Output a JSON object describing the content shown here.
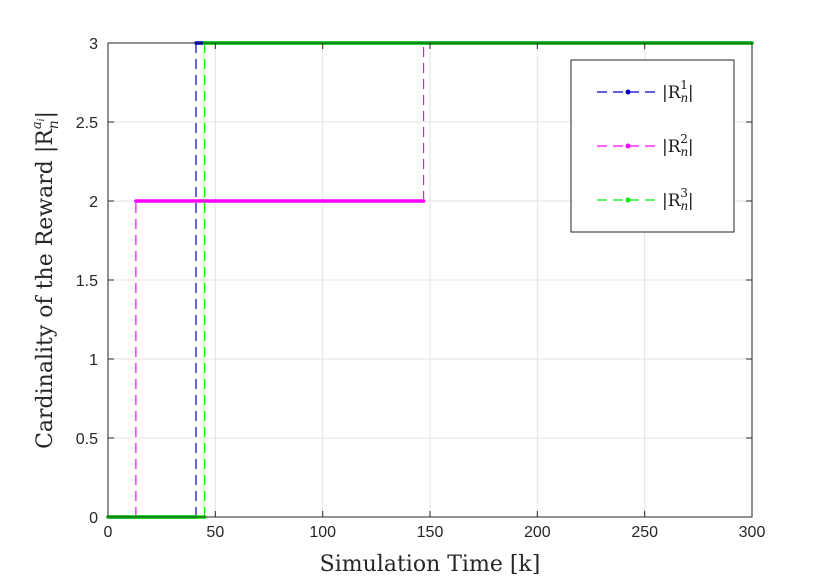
{
  "chart_data": {
    "type": "line",
    "xlabel": "Simulation Time [k]",
    "ylabel": "Cardinality of the Reward |R",
    "ylabel_sub": "n",
    "ylabel_sup": "a",
    "ylabel_sup_sub": "i",
    "ylabel_end": "|",
    "xlim": [
      0,
      300
    ],
    "ylim": [
      0,
      3
    ],
    "xticks": [
      0,
      50,
      100,
      150,
      200,
      250,
      300
    ],
    "yticks": [
      0,
      0.5,
      1,
      1.5,
      2,
      2.5,
      3
    ],
    "xtick_labels": [
      "0",
      "50",
      "100",
      "150",
      "200",
      "250",
      "300"
    ],
    "ytick_labels": [
      "0",
      "0.5",
      "1",
      "1.5",
      "2",
      "2.5",
      "3"
    ],
    "grid": true,
    "legend_position": "top-right",
    "series": [
      {
        "name_base": "|R",
        "name_sub": "n",
        "name_sup": "1",
        "name_end": "|",
        "color": "#0000cc",
        "x": [
          0,
          41,
          41,
          42,
          300
        ],
        "y": [
          0,
          0,
          3,
          3,
          3
        ]
      },
      {
        "name_base": "|R",
        "name_sub": "n",
        "name_sup": "2",
        "name_end": "|",
        "color": "#ff00ff",
        "x": [
          0,
          13,
          13,
          147,
          147,
          300
        ],
        "y": [
          0,
          0,
          2,
          2,
          3,
          3
        ]
      },
      {
        "name_base": "|R",
        "name_sub": "n",
        "name_sup": "3",
        "name_end": "|",
        "color": "#00ee00",
        "x": [
          0,
          45,
          45,
          300
        ],
        "y": [
          0,
          0,
          3,
          3
        ]
      }
    ]
  }
}
